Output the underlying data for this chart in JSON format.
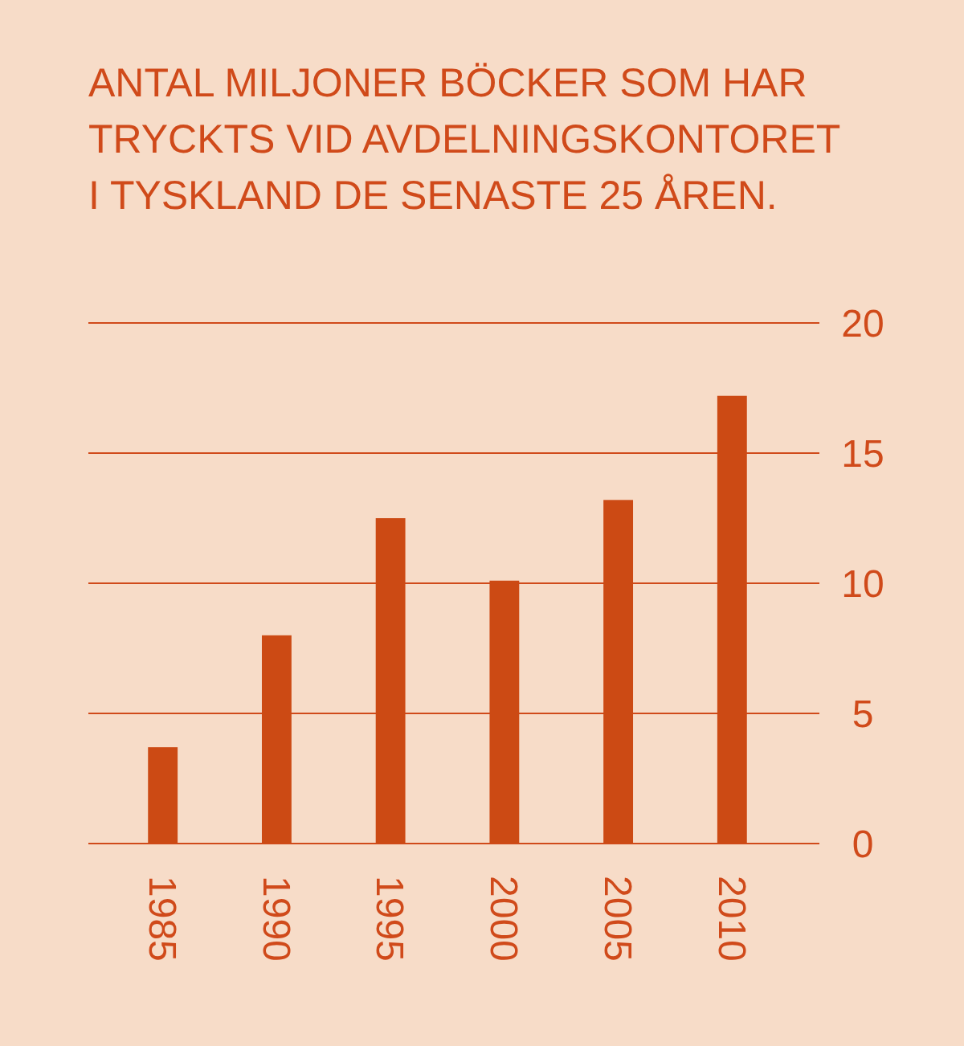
{
  "chart_data": {
    "type": "bar",
    "title": "ANTAL MILJONER BÖCKER SOM HAR TRYCKTS VID AVDELNINGSKONTORET I TYSKLAND DE SENASTE 25 ÅREN.",
    "categories": [
      "1985",
      "1990",
      "1995",
      "2000",
      "2005",
      "2010"
    ],
    "values": [
      3.7,
      8,
      12.5,
      10.1,
      13.2,
      17.2
    ],
    "color": "#cc4a14",
    "ylim": [
      0,
      20
    ],
    "yticks": [
      0,
      5,
      10,
      15,
      20
    ],
    "grid": "y"
  }
}
